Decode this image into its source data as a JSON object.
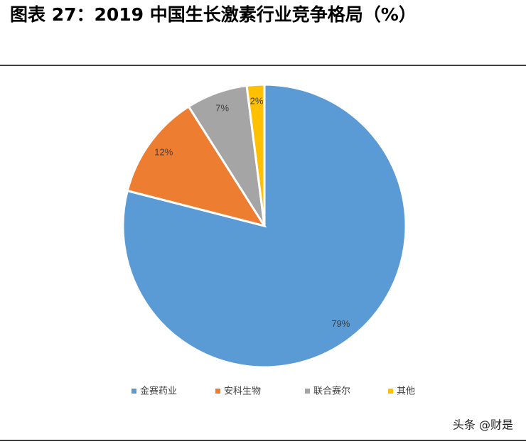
{
  "chart_data": {
    "type": "pie",
    "title": "图表 27：2019 中国生长激素行业竞争格局（%）",
    "categories": [
      "金赛药业",
      "安科生物",
      "联合赛尔",
      "其他"
    ],
    "values": [
      79,
      12,
      7,
      2
    ],
    "value_labels": [
      "79%",
      "12%",
      "7%",
      "2%"
    ],
    "colors": [
      "#5b9bd5",
      "#ed7d31",
      "#a5a5a5",
      "#ffc000"
    ],
    "legend": "bottom"
  },
  "watermark": "头条 @财是"
}
